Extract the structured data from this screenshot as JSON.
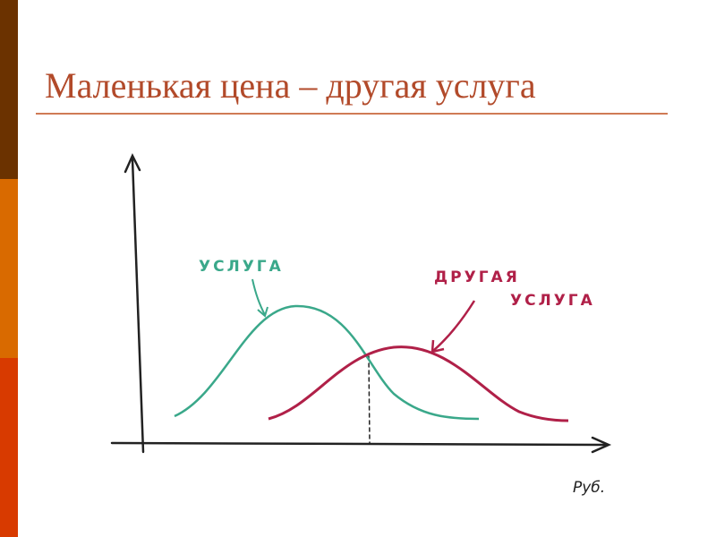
{
  "header": {
    "title": "Маленькая цена – другая услуга"
  },
  "diagram": {
    "curve_1_label": "УСЛУГА",
    "curve_2_label_line_1": "ДРУГАЯ",
    "curve_2_label_line_2": "УСЛУГА",
    "x_axis_label": "Руб."
  }
}
